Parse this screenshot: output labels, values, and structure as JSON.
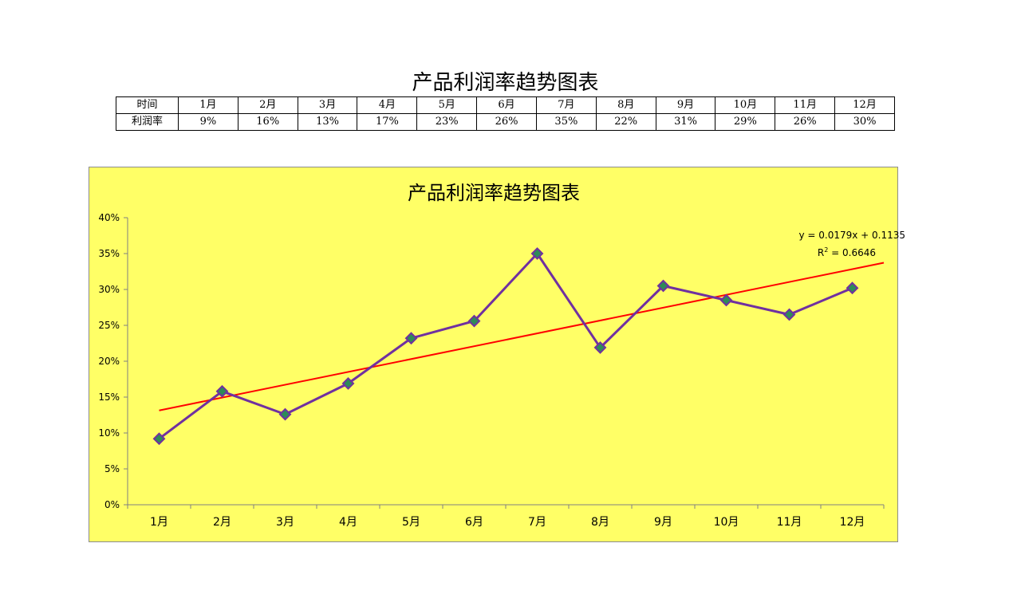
{
  "page": {
    "title": "产品利润率趋势图表"
  },
  "table": {
    "row1_header": "时间",
    "row2_header": "利润率",
    "months": [
      "1月",
      "2月",
      "3月",
      "4月",
      "5月",
      "6月",
      "7月",
      "8月",
      "9月",
      "10月",
      "11月",
      "12月"
    ],
    "rates": [
      "9%",
      "16%",
      "13%",
      "17%",
      "23%",
      "26%",
      "35%",
      "22%",
      "31%",
      "29%",
      "26%",
      "30%"
    ]
  },
  "colors": {
    "plot_background": "#ffff66",
    "line": "#7030a0",
    "marker": "#2e8b57",
    "trendline": "#ff0000",
    "axis": "#808080"
  },
  "chart_data": {
    "type": "line",
    "title": "产品利润率趋势图表",
    "categories": [
      "1月",
      "2月",
      "3月",
      "4月",
      "5月",
      "6月",
      "7月",
      "8月",
      "9月",
      "10月",
      "11月",
      "12月"
    ],
    "series": [
      {
        "values": [
          0.092,
          0.158,
          0.126,
          0.169,
          0.232,
          0.256,
          0.35,
          0.219,
          0.305,
          0.285,
          0.265,
          0.302
        ]
      }
    ],
    "y_ticks": [
      "0%",
      "5%",
      "10%",
      "15%",
      "20%",
      "25%",
      "30%",
      "35%",
      "40%"
    ],
    "ylim": [
      0,
      0.4
    ],
    "grid": false,
    "trendline": {
      "type": "linear",
      "slope": 0.0179,
      "intercept": 0.1135,
      "equation": "y = 0.0179x + 0.1135",
      "r2_label": "R",
      "r2_sup": "2",
      "r2_value": " = 0.6646"
    }
  }
}
